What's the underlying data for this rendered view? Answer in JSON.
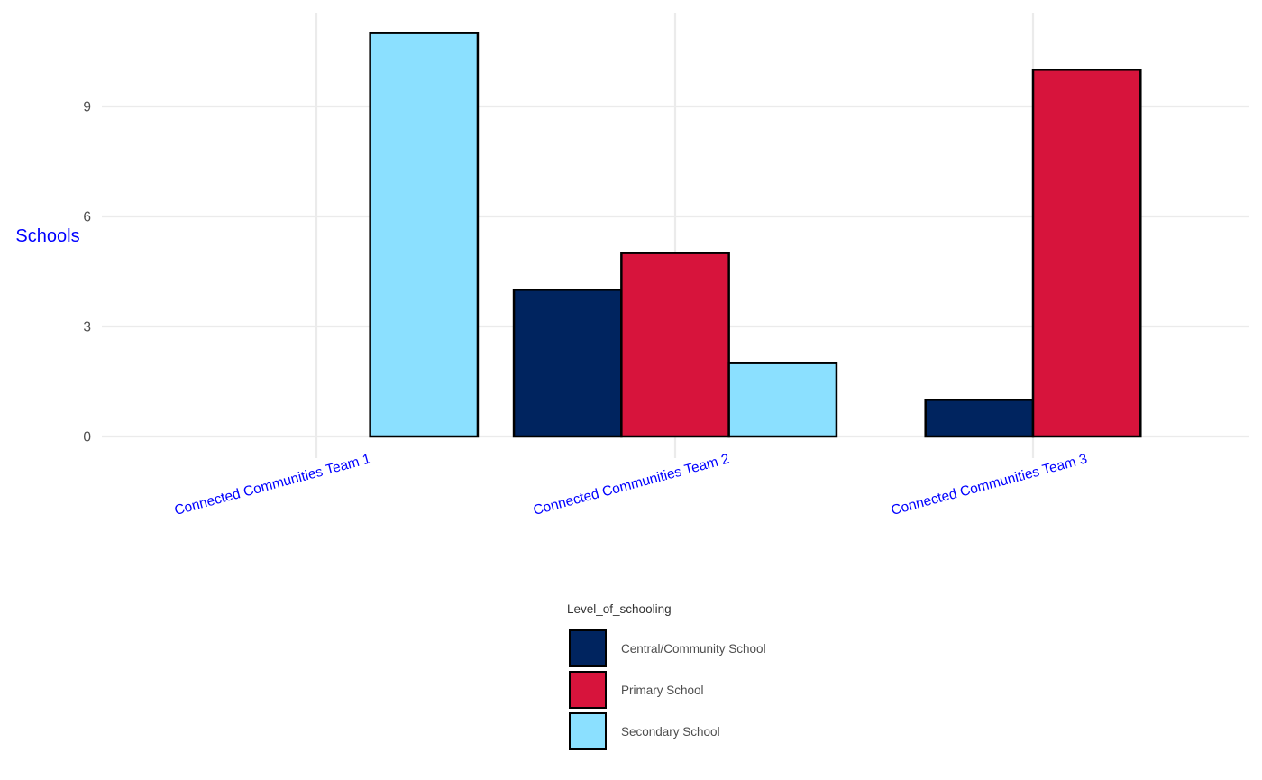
{
  "chart_data": {
    "type": "bar",
    "categories": [
      "Connected Communities Team 1",
      "Connected Communities Team 2",
      "Connected Communities Team 3"
    ],
    "series": [
      {
        "name": "Central/Community School",
        "color": "#00245f",
        "values": [
          0,
          4,
          1
        ]
      },
      {
        "name": "Primary School",
        "color": "#d7143c",
        "values": [
          0,
          5,
          10
        ]
      },
      {
        "name": "Secondary School",
        "color": "#8be0ff",
        "values": [
          11,
          2,
          0
        ]
      }
    ],
    "title": "",
    "xlabel": "",
    "ylabel": "Schools",
    "ylim": [
      0,
      11.5
    ],
    "yticks": [
      0,
      3,
      6,
      9
    ],
    "legend": {
      "title": "Level_of_schooling",
      "position": "bottom"
    },
    "grid": true
  }
}
